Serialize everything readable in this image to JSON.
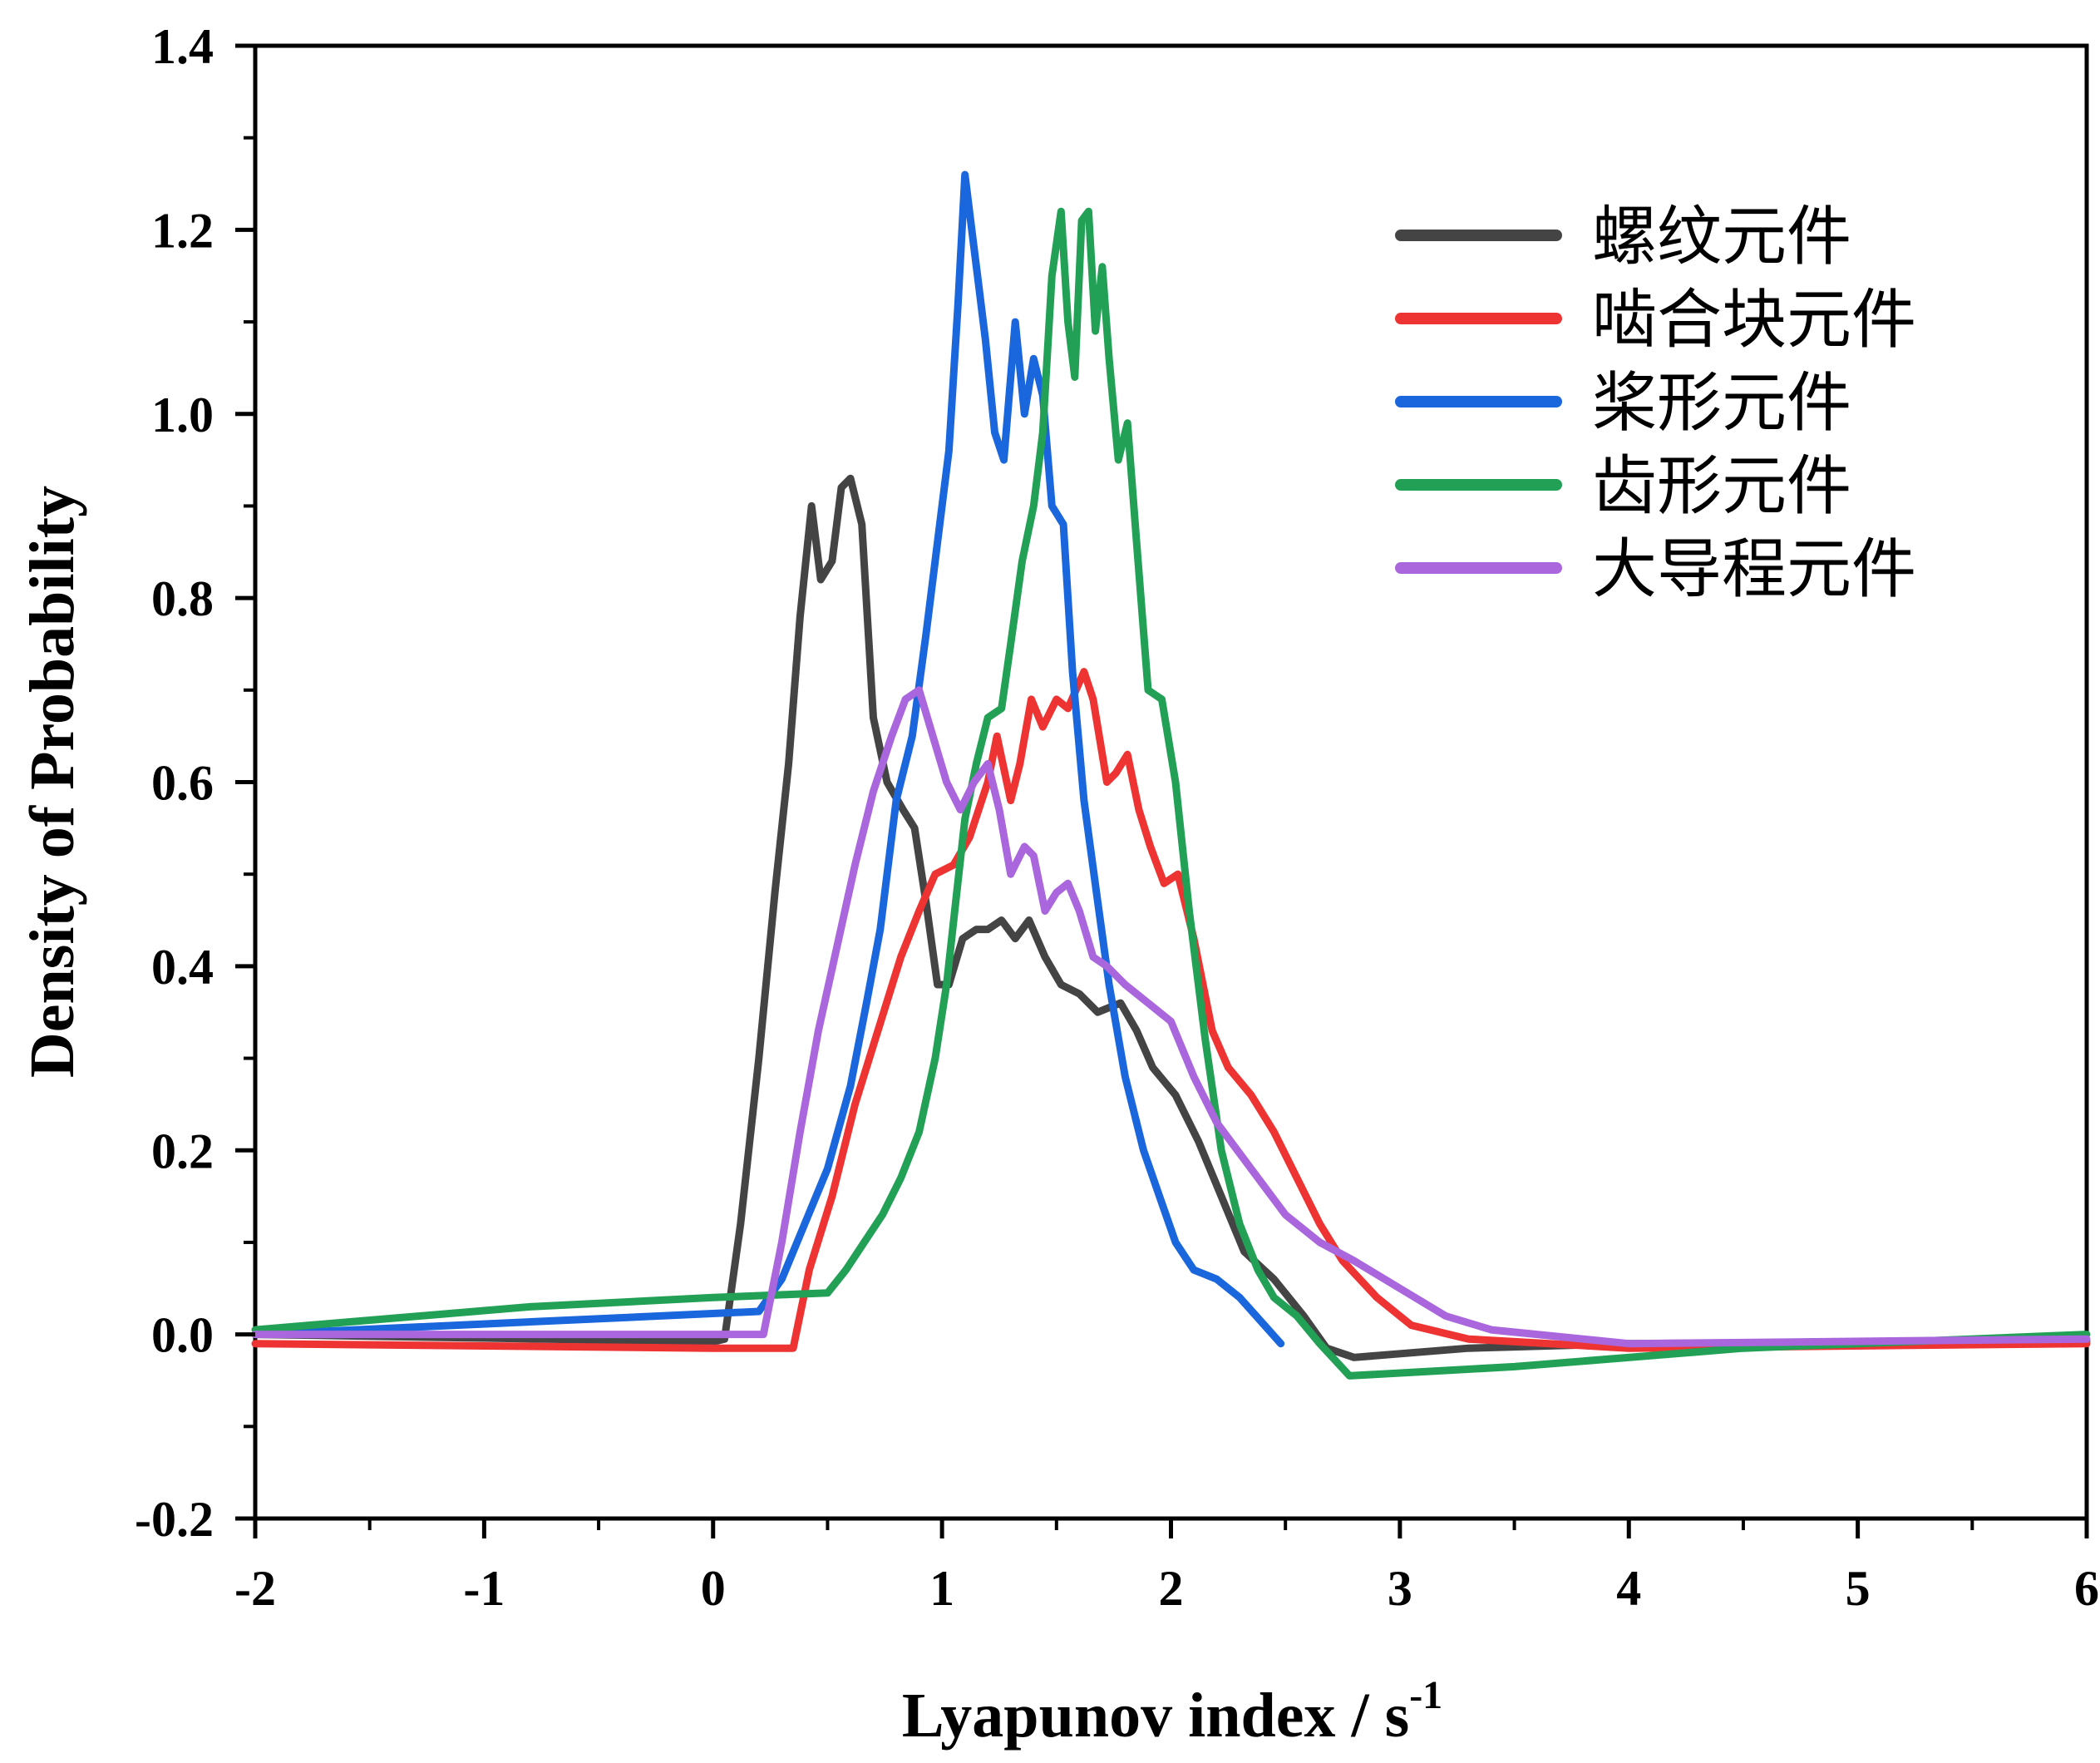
{
  "chart_data": {
    "type": "line",
    "xlabel": "Lyapunov index / s",
    "xlabel_superscript": "-1",
    "ylabel": "Density of Probability",
    "xlim": [
      -2,
      6
    ],
    "ylim": [
      -0.2,
      1.4
    ],
    "x_ticks": [
      "-2",
      "-1",
      "0",
      "1",
      "2",
      "3",
      "4",
      "5",
      "6"
    ],
    "y_ticks": [
      "-0.2",
      "0.0",
      "0.2",
      "0.4",
      "0.6",
      "0.8",
      "1.0",
      "1.2",
      "1.4"
    ],
    "grid": false,
    "legend_position": "top-right",
    "series": [
      {
        "name": "螺纹元件",
        "color": "#444444",
        "points": [
          [
            -2,
            0.0
          ],
          [
            0.0,
            -0.008
          ],
          [
            0.05,
            -0.005
          ],
          [
            0.12,
            0.12
          ],
          [
            0.2,
            0.3
          ],
          [
            0.27,
            0.48
          ],
          [
            0.33,
            0.62
          ],
          [
            0.38,
            0.78
          ],
          [
            0.43,
            0.9
          ],
          [
            0.47,
            0.82
          ],
          [
            0.52,
            0.84
          ],
          [
            0.56,
            0.92
          ],
          [
            0.6,
            0.93
          ],
          [
            0.65,
            0.88
          ],
          [
            0.7,
            0.67
          ],
          [
            0.76,
            0.6
          ],
          [
            0.83,
            0.57
          ],
          [
            0.88,
            0.55
          ],
          [
            0.93,
            0.47
          ],
          [
            0.98,
            0.38
          ],
          [
            1.03,
            0.38
          ],
          [
            1.09,
            0.43
          ],
          [
            1.15,
            0.44
          ],
          [
            1.2,
            0.44
          ],
          [
            1.26,
            0.45
          ],
          [
            1.32,
            0.43
          ],
          [
            1.38,
            0.45
          ],
          [
            1.45,
            0.41
          ],
          [
            1.52,
            0.38
          ],
          [
            1.6,
            0.37
          ],
          [
            1.68,
            0.35
          ],
          [
            1.78,
            0.36
          ],
          [
            1.85,
            0.33
          ],
          [
            1.92,
            0.29
          ],
          [
            2.02,
            0.26
          ],
          [
            2.12,
            0.21
          ],
          [
            2.22,
            0.15
          ],
          [
            2.32,
            0.09
          ],
          [
            2.45,
            0.06
          ],
          [
            2.58,
            0.02
          ],
          [
            2.68,
            -0.015
          ],
          [
            2.8,
            -0.025
          ],
          [
            3.3,
            -0.015
          ],
          [
            4.0,
            -0.01
          ],
          [
            6.0,
            -0.007
          ]
        ]
      },
      {
        "name": "啮合块元件",
        "color": "#ee3333",
        "points": [
          [
            -2,
            -0.01
          ],
          [
            0.0,
            -0.015
          ],
          [
            0.35,
            -0.015
          ],
          [
            0.42,
            0.07
          ],
          [
            0.52,
            0.15
          ],
          [
            0.62,
            0.25
          ],
          [
            0.72,
            0.33
          ],
          [
            0.82,
            0.41
          ],
          [
            0.9,
            0.46
          ],
          [
            0.97,
            0.5
          ],
          [
            1.05,
            0.51
          ],
          [
            1.12,
            0.54
          ],
          [
            1.2,
            0.6
          ],
          [
            1.24,
            0.65
          ],
          [
            1.3,
            0.58
          ],
          [
            1.34,
            0.62
          ],
          [
            1.39,
            0.69
          ],
          [
            1.44,
            0.66
          ],
          [
            1.5,
            0.69
          ],
          [
            1.55,
            0.68
          ],
          [
            1.62,
            0.72
          ],
          [
            1.66,
            0.69
          ],
          [
            1.72,
            0.6
          ],
          [
            1.76,
            0.61
          ],
          [
            1.81,
            0.63
          ],
          [
            1.86,
            0.57
          ],
          [
            1.91,
            0.53
          ],
          [
            1.97,
            0.49
          ],
          [
            2.03,
            0.5
          ],
          [
            2.1,
            0.43
          ],
          [
            2.18,
            0.33
          ],
          [
            2.25,
            0.29
          ],
          [
            2.35,
            0.26
          ],
          [
            2.45,
            0.22
          ],
          [
            2.55,
            0.17
          ],
          [
            2.65,
            0.12
          ],
          [
            2.75,
            0.08
          ],
          [
            2.9,
            0.04
          ],
          [
            3.05,
            0.01
          ],
          [
            3.3,
            -0.005
          ],
          [
            4.0,
            -0.015
          ],
          [
            6.0,
            -0.01
          ]
        ]
      },
      {
        "name": "桨形元件",
        "color": "#1a66dd",
        "points": [
          [
            -2,
            0.0
          ],
          [
            0.2,
            0.025
          ],
          [
            0.3,
            0.06
          ],
          [
            0.4,
            0.12
          ],
          [
            0.5,
            0.18
          ],
          [
            0.6,
            0.27
          ],
          [
            0.67,
            0.36
          ],
          [
            0.73,
            0.44
          ],
          [
            0.8,
            0.58
          ],
          [
            0.87,
            0.65
          ],
          [
            0.93,
            0.76
          ],
          [
            0.98,
            0.86
          ],
          [
            1.03,
            0.96
          ],
          [
            1.07,
            1.12
          ],
          [
            1.1,
            1.26
          ],
          [
            1.13,
            1.2
          ],
          [
            1.16,
            1.14
          ],
          [
            1.19,
            1.08
          ],
          [
            1.23,
            0.98
          ],
          [
            1.27,
            0.95
          ],
          [
            1.32,
            1.1
          ],
          [
            1.36,
            1.0
          ],
          [
            1.4,
            1.06
          ],
          [
            1.44,
            1.02
          ],
          [
            1.48,
            0.9
          ],
          [
            1.53,
            0.88
          ],
          [
            1.57,
            0.72
          ],
          [
            1.62,
            0.58
          ],
          [
            1.68,
            0.47
          ],
          [
            1.73,
            0.38
          ],
          [
            1.8,
            0.28
          ],
          [
            1.88,
            0.2
          ],
          [
            1.95,
            0.15
          ],
          [
            2.02,
            0.1
          ],
          [
            2.1,
            0.07
          ],
          [
            2.2,
            0.06
          ],
          [
            2.3,
            0.04
          ],
          [
            2.48,
            -0.01
          ]
        ]
      },
      {
        "name": "齿形元件",
        "color": "#22a055",
        "points": [
          [
            -2,
            0.005
          ],
          [
            -0.8,
            0.03
          ],
          [
            0.0,
            0.04
          ],
          [
            0.5,
            0.045
          ],
          [
            0.58,
            0.07
          ],
          [
            0.66,
            0.1
          ],
          [
            0.74,
            0.13
          ],
          [
            0.82,
            0.17
          ],
          [
            0.9,
            0.22
          ],
          [
            0.97,
            0.3
          ],
          [
            1.02,
            0.38
          ],
          [
            1.06,
            0.47
          ],
          [
            1.1,
            0.56
          ],
          [
            1.15,
            0.62
          ],
          [
            1.2,
            0.67
          ],
          [
            1.26,
            0.68
          ],
          [
            1.3,
            0.75
          ],
          [
            1.35,
            0.84
          ],
          [
            1.4,
            0.9
          ],
          [
            1.44,
            0.98
          ],
          [
            1.48,
            1.15
          ],
          [
            1.52,
            1.22
          ],
          [
            1.55,
            1.1
          ],
          [
            1.58,
            1.04
          ],
          [
            1.61,
            1.21
          ],
          [
            1.64,
            1.22
          ],
          [
            1.67,
            1.09
          ],
          [
            1.7,
            1.16
          ],
          [
            1.73,
            1.06
          ],
          [
            1.77,
            0.95
          ],
          [
            1.81,
            0.99
          ],
          [
            1.85,
            0.86
          ],
          [
            1.9,
            0.7
          ],
          [
            1.96,
            0.69
          ],
          [
            2.02,
            0.6
          ],
          [
            2.08,
            0.46
          ],
          [
            2.15,
            0.32
          ],
          [
            2.22,
            0.2
          ],
          [
            2.3,
            0.12
          ],
          [
            2.38,
            0.07
          ],
          [
            2.45,
            0.04
          ],
          [
            2.55,
            0.02
          ],
          [
            2.65,
            -0.01
          ],
          [
            2.78,
            -0.045
          ],
          [
            3.5,
            -0.035
          ],
          [
            4.5,
            -0.015
          ],
          [
            6.0,
            0.0
          ]
        ]
      },
      {
        "name": "大导程元件",
        "color": "#aa66dd",
        "points": [
          [
            -2,
            0.0
          ],
          [
            0.22,
            0.0
          ],
          [
            0.3,
            0.1
          ],
          [
            0.38,
            0.22
          ],
          [
            0.46,
            0.33
          ],
          [
            0.54,
            0.42
          ],
          [
            0.62,
            0.51
          ],
          [
            0.7,
            0.59
          ],
          [
            0.78,
            0.65
          ],
          [
            0.84,
            0.69
          ],
          [
            0.9,
            0.7
          ],
          [
            0.96,
            0.65
          ],
          [
            1.02,
            0.6
          ],
          [
            1.08,
            0.57
          ],
          [
            1.14,
            0.6
          ],
          [
            1.2,
            0.62
          ],
          [
            1.25,
            0.57
          ],
          [
            1.3,
            0.5
          ],
          [
            1.36,
            0.53
          ],
          [
            1.4,
            0.52
          ],
          [
            1.45,
            0.46
          ],
          [
            1.5,
            0.48
          ],
          [
            1.55,
            0.49
          ],
          [
            1.6,
            0.46
          ],
          [
            1.66,
            0.41
          ],
          [
            1.72,
            0.4
          ],
          [
            1.8,
            0.38
          ],
          [
            1.9,
            0.36
          ],
          [
            2.0,
            0.34
          ],
          [
            2.1,
            0.28
          ],
          [
            2.2,
            0.23
          ],
          [
            2.35,
            0.18
          ],
          [
            2.5,
            0.13
          ],
          [
            2.65,
            0.1
          ],
          [
            2.8,
            0.08
          ],
          [
            3.0,
            0.05
          ],
          [
            3.2,
            0.02
          ],
          [
            3.4,
            0.005
          ],
          [
            4.0,
            -0.01
          ],
          [
            6.0,
            -0.005
          ]
        ]
      }
    ]
  }
}
